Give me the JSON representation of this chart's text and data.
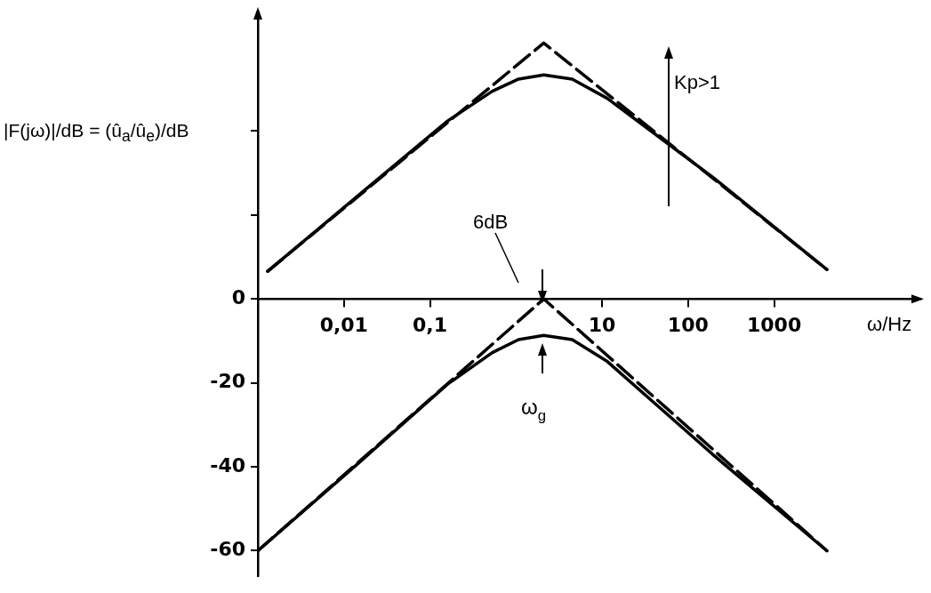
{
  "chart_data": {
    "type": "line",
    "xlabel": "ω/Hz",
    "ylabel": "|F(jω)|/dB = (û$_{a}$/û$_{e}$)/dB",
    "log": "x",
    "xlim": [
      0.001,
      50000
    ],
    "ylim": [
      -66,
      67
    ],
    "xticks": [
      {
        "value": 0.01,
        "label": "0,01"
      },
      {
        "value": 0.1,
        "label": "0,1"
      },
      {
        "value": 10,
        "label": "10"
      },
      {
        "value": 100,
        "label": "100"
      },
      {
        "value": 1000,
        "label": "1000"
      }
    ],
    "yticks": [
      -60,
      -40,
      -20,
      0,
      {
        "value": 20,
        "label": null
      },
      {
        "value": 40,
        "label": null
      }
    ],
    "grid": false,
    "legend": false,
    "marker": "none",
    "series": [
      {
        "color": "#000000",
        "line_style": "dashed",
        "x": [
          0.0013,
          2.1,
          4100
        ],
        "values": [
          6.6,
          61,
          7
        ]
      },
      {
        "color": "#000000",
        "line_style": "solid",
        "x": [
          0.0013,
          0.015,
          0.16,
          0.53,
          1.07,
          2.1,
          4.5,
          11.5,
          200,
          4100
        ],
        "values": [
          6.6,
          24.8,
          42.4,
          49.5,
          52.4,
          53.4,
          52.4,
          47.8,
          28.8,
          7
        ]
      },
      {
        "color": "#000000",
        "line_style": "dashed",
        "x": [
          0.001,
          2.1,
          4100
        ],
        "values": [
          -60,
          0,
          -60
        ]
      },
      {
        "color": "#000000",
        "line_style": "solid",
        "x": [
          0.001,
          0.015,
          0.16,
          0.53,
          1.07,
          2.1,
          4.5,
          11.5,
          200,
          4100
        ],
        "values": [
          -60,
          -39,
          -20.3,
          -12.8,
          -9.7,
          -8.7,
          -9.7,
          -14.9,
          -37.3,
          -60
        ]
      }
    ],
    "annotations": [
      "6dB",
      "ω$_{g}$",
      "Kp>1"
    ]
  }
}
